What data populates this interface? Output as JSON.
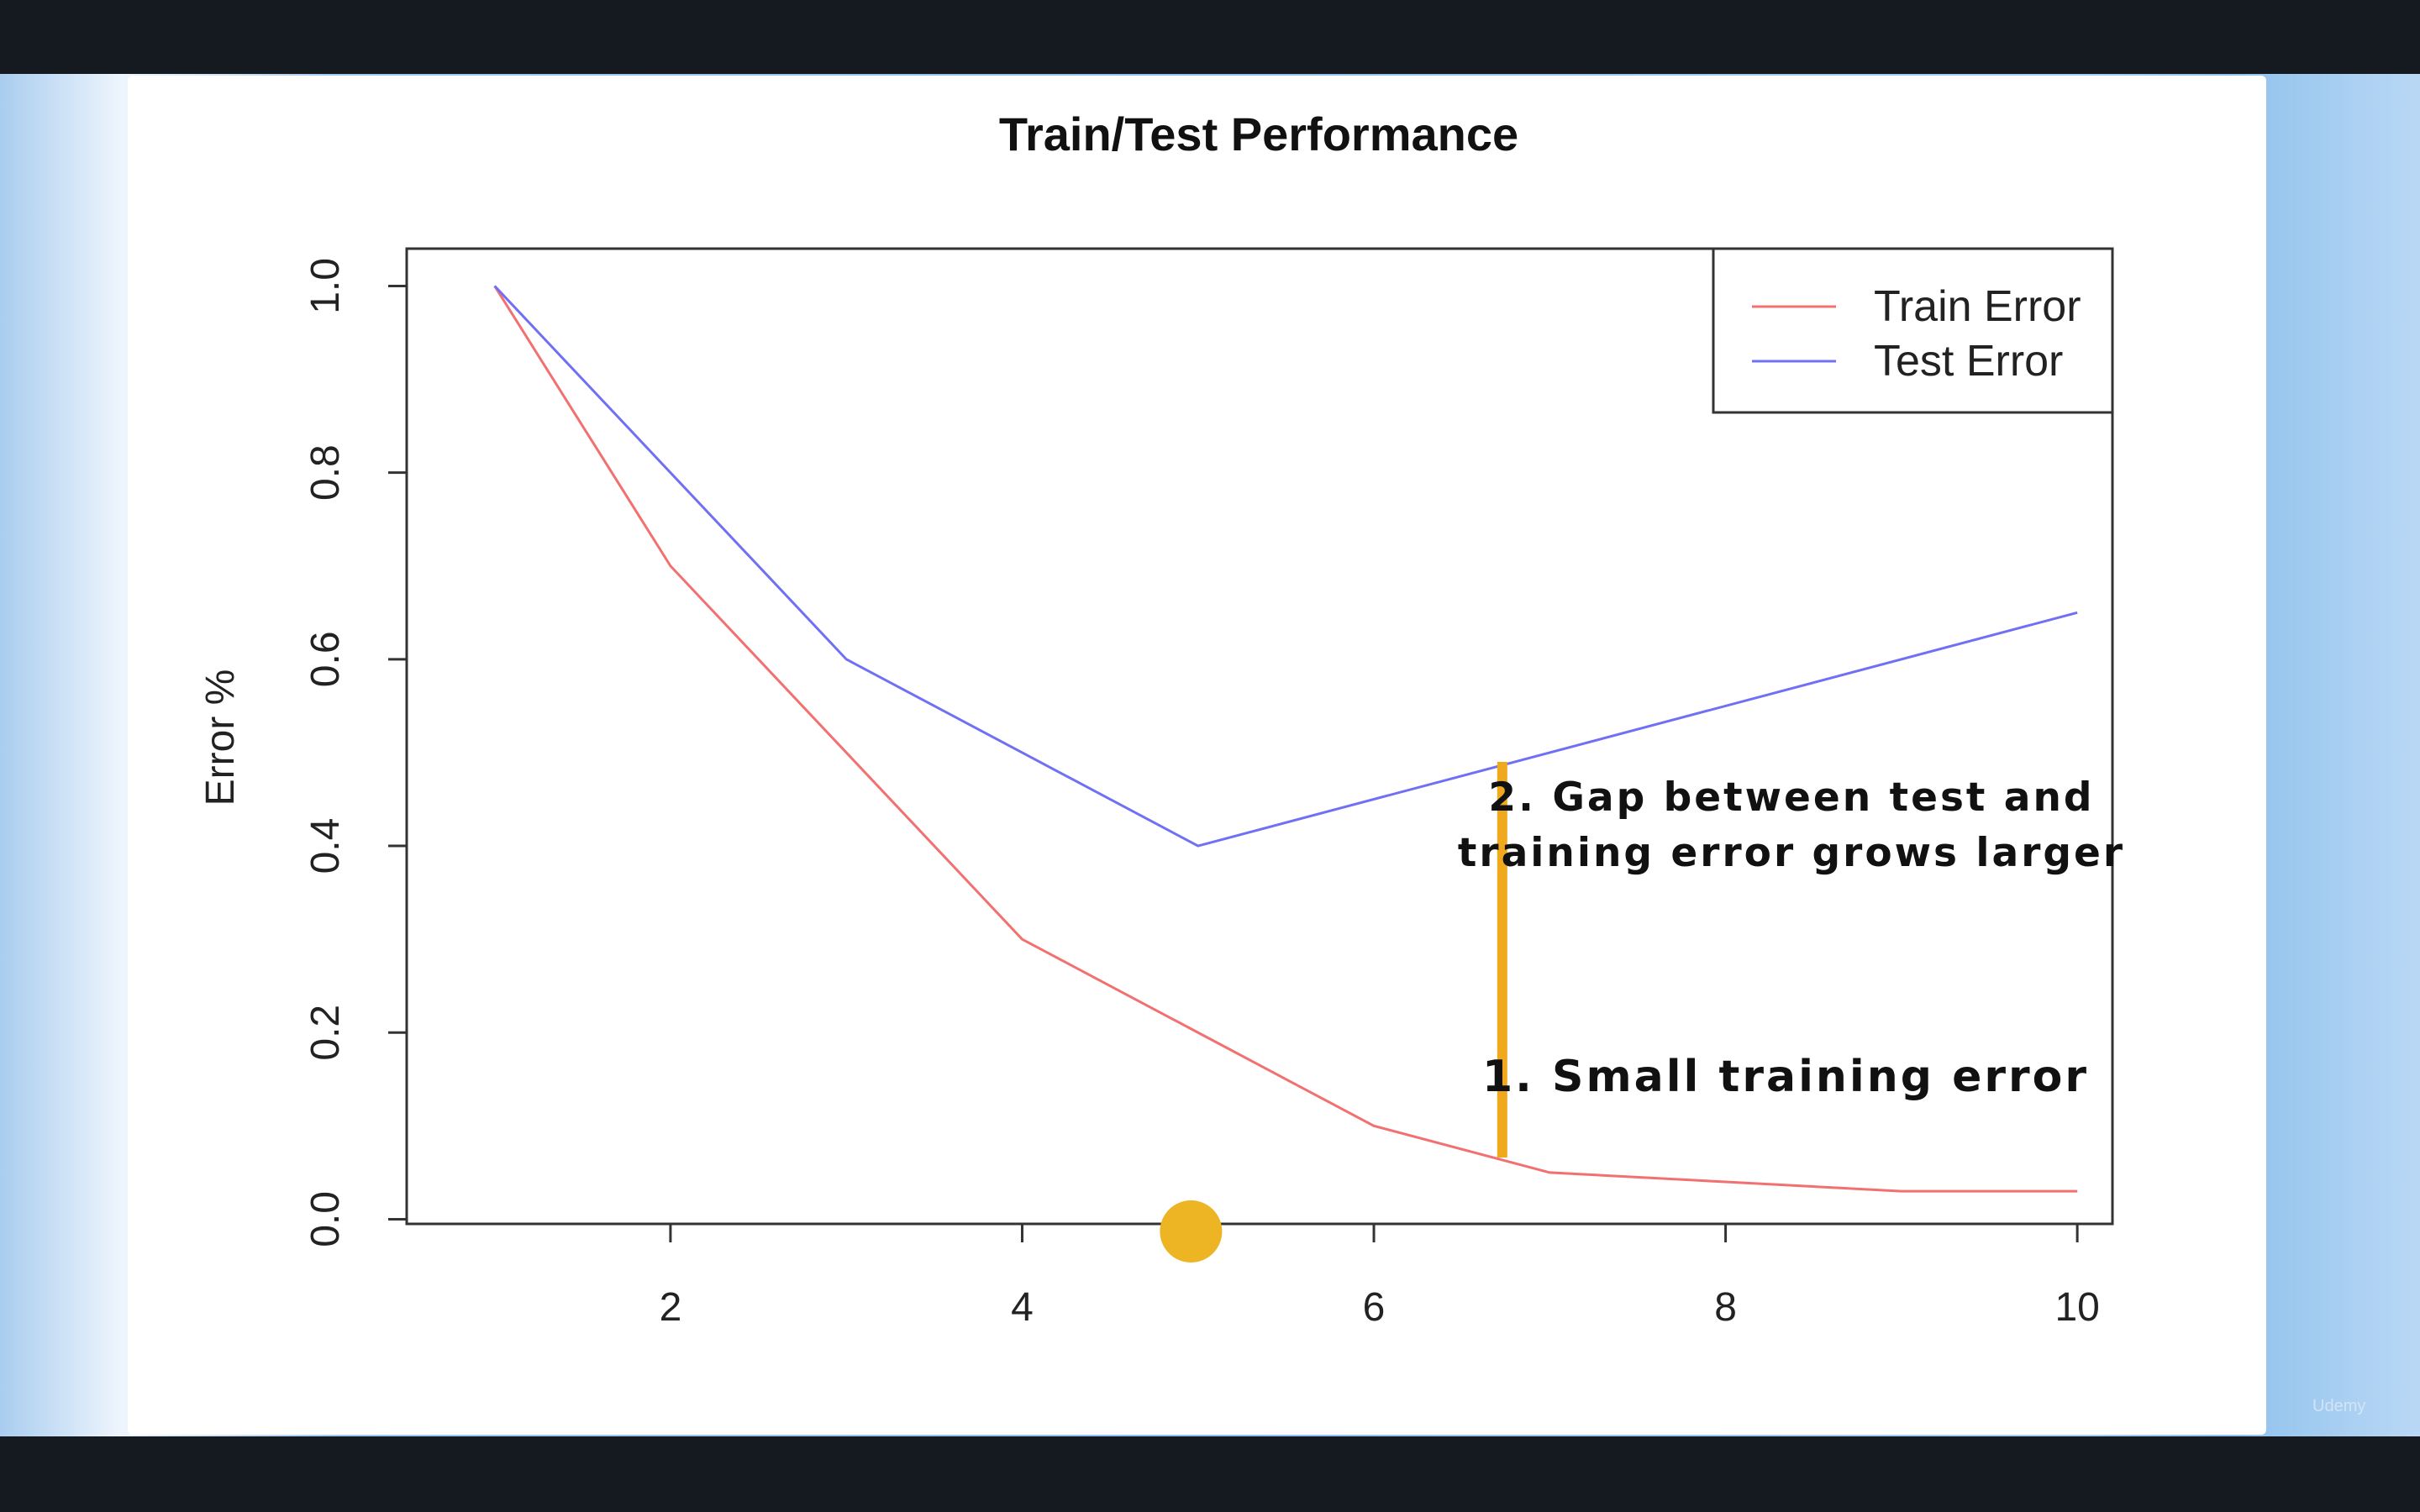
{
  "watermark": "Udemy",
  "chart_data": {
    "type": "line",
    "title": "Train/Test Performance",
    "xlabel": "",
    "ylabel": "Error %",
    "xlim": [
      0.5,
      10.2
    ],
    "ylim": [
      -0.005,
      1.04
    ],
    "x_ticks": [
      2,
      4,
      6,
      8,
      10
    ],
    "y_ticks": [
      0.0,
      0.2,
      0.4,
      0.6,
      0.8,
      1.0
    ],
    "y_tick_labels": [
      "0.0",
      "0.2",
      "0.4",
      "0.6",
      "0.8",
      "1.0"
    ],
    "legend_position": "top-right",
    "series": [
      {
        "name": "Train Error",
        "color": "#f27070",
        "x": [
          1,
          2,
          3,
          4,
          5,
          6,
          7,
          8,
          9,
          10
        ],
        "y": [
          1.0,
          0.7,
          0.5,
          0.3,
          0.2,
          0.1,
          0.05,
          0.04,
          0.03,
          0.03
        ]
      },
      {
        "name": "Test Error",
        "color": "#7070f5",
        "x": [
          1,
          3,
          5,
          10
        ],
        "y": [
          1.0,
          0.6,
          0.4,
          0.65
        ]
      }
    ],
    "annotations": {
      "gap_label_line1": "2. Gap between test and",
      "gap_label_line2": "training error grows larger",
      "small_error_label": "1. Small training error",
      "gap_marker_x": 6.73,
      "gap_marker_color": "#f0a81c",
      "point_marker_x": 4.96,
      "point_marker_color": "#edb423"
    }
  }
}
